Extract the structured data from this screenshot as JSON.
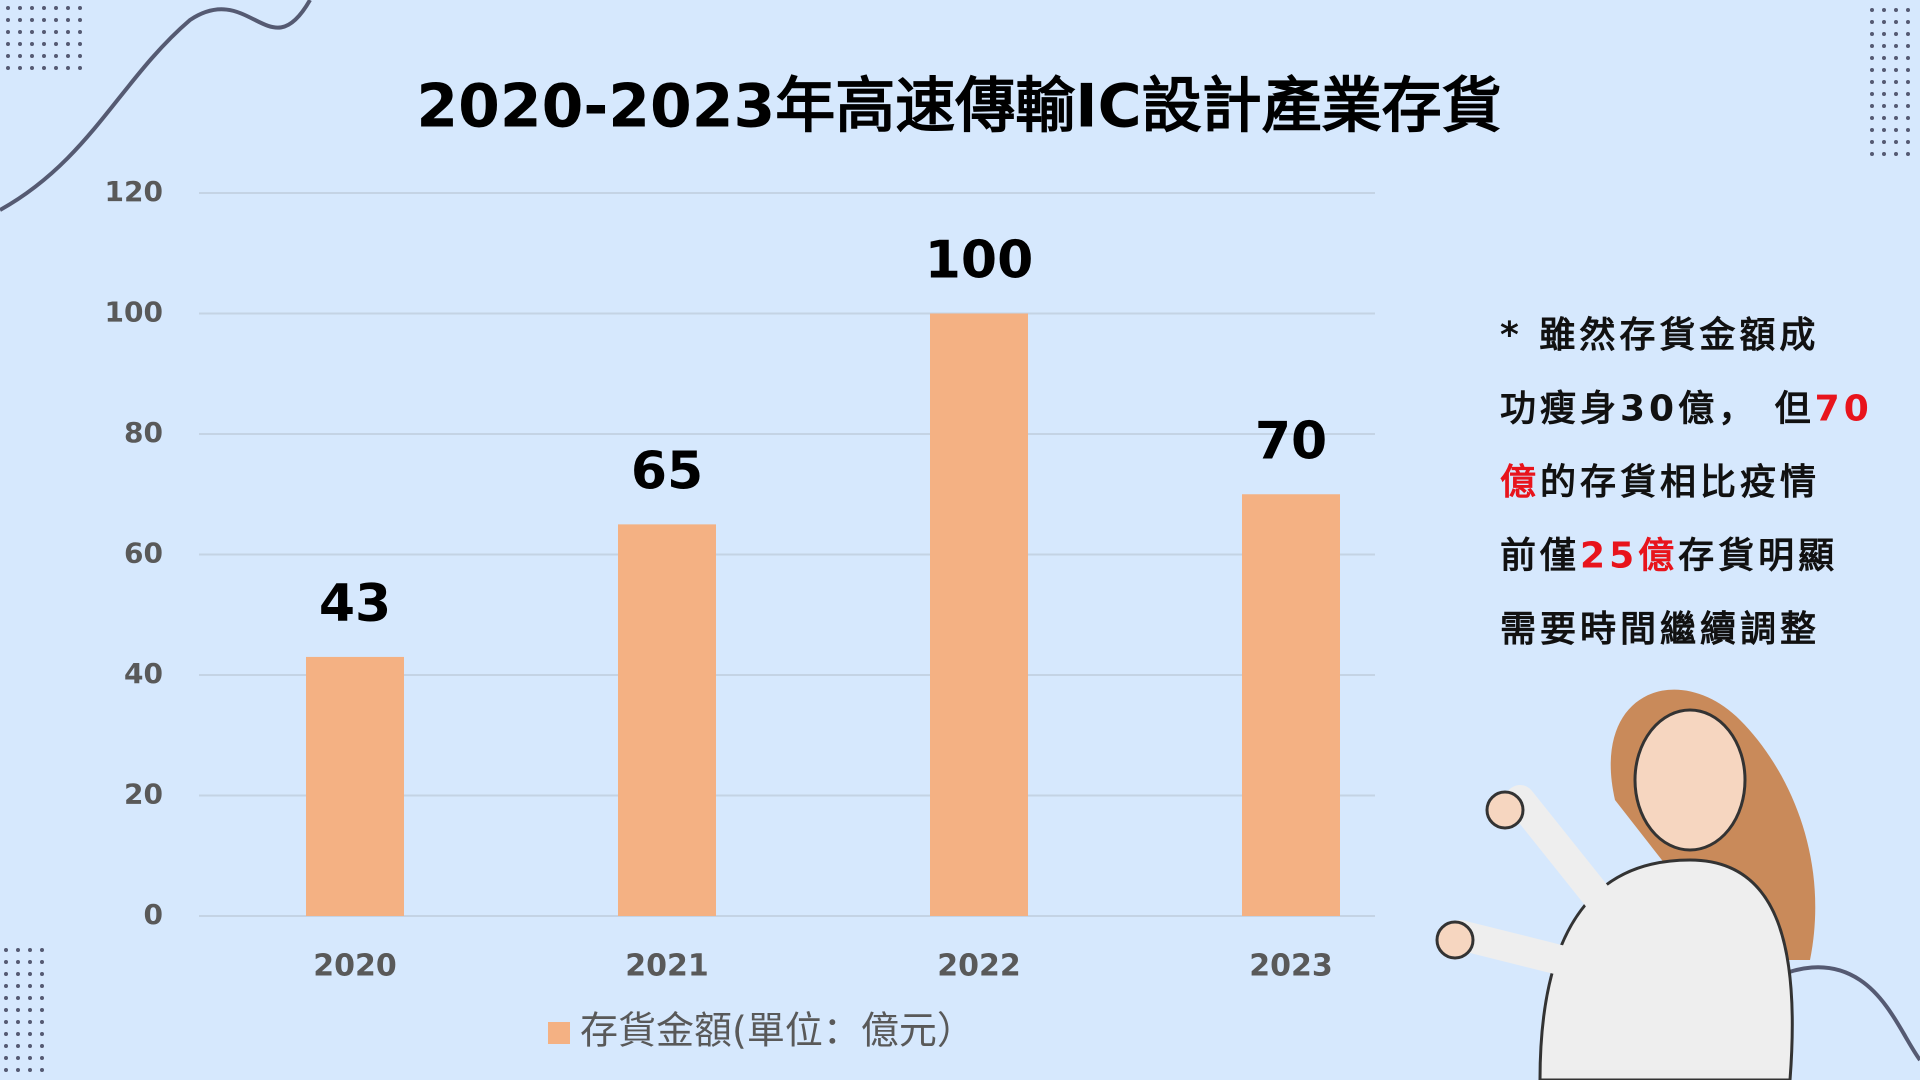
{
  "chart_data": {
    "type": "bar",
    "title": "2020-2023年高速傳輸IC設計產業存貨",
    "categories": [
      "2020",
      "2021",
      "2022",
      "2023"
    ],
    "series": [
      {
        "name": "存貨金額(單位：億元）",
        "color": "#f4b183",
        "values": [
          43,
          65,
          100,
          70
        ]
      }
    ],
    "ylim": [
      0,
      120
    ],
    "yticks": [
      0,
      20,
      40,
      60,
      80,
      100,
      120
    ],
    "grid": true,
    "legend": "bottom",
    "annotation": [
      [
        {
          "text": "* 雖然存貨金額成",
          "color": "#111111"
        }
      ],
      [
        {
          "text": "功瘦身30億， 但",
          "color": "#111111"
        },
        {
          "text": "70",
          "color": "#e8141c"
        }
      ],
      [
        {
          "text": "億",
          "color": "#e8141c"
        },
        {
          "text": "的存貨相比疫情",
          "color": "#111111"
        }
      ],
      [
        {
          "text": "前僅",
          "color": "#111111"
        },
        {
          "text": "25億",
          "color": "#e8141c"
        },
        {
          "text": "存貨明顯",
          "color": "#111111"
        }
      ],
      [
        {
          "text": "需要時間繼續調整",
          "color": "#111111"
        }
      ]
    ]
  }
}
